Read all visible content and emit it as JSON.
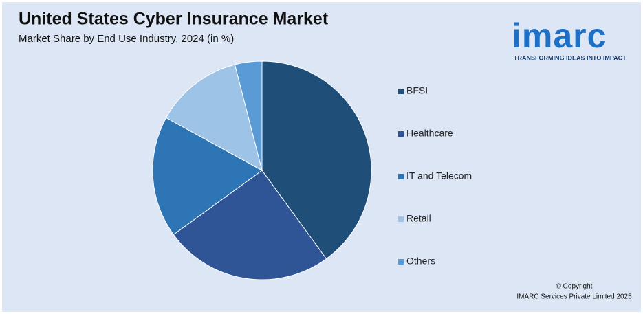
{
  "chart_data": {
    "type": "pie",
    "title": "United States Cyber Insurance Market",
    "subtitle": "Market Share by End Use Industry, 2024 (in %)",
    "categories": [
      "BFSI",
      "Healthcare",
      "IT and Telecom",
      "Retail",
      "Others"
    ],
    "values": [
      40,
      25,
      18,
      13,
      4
    ],
    "colors": [
      "#1f4e79",
      "#2f5597",
      "#2e75b6",
      "#9dc3e6",
      "#5b9bd5"
    ],
    "legend": "right"
  },
  "logo": {
    "name": "imarc",
    "tagline": "TRANSFORMING IDEAS INTO IMPACT"
  },
  "footer": {
    "copyright": "© Copyright",
    "company": "IMARC Services Private Limited 2025"
  }
}
